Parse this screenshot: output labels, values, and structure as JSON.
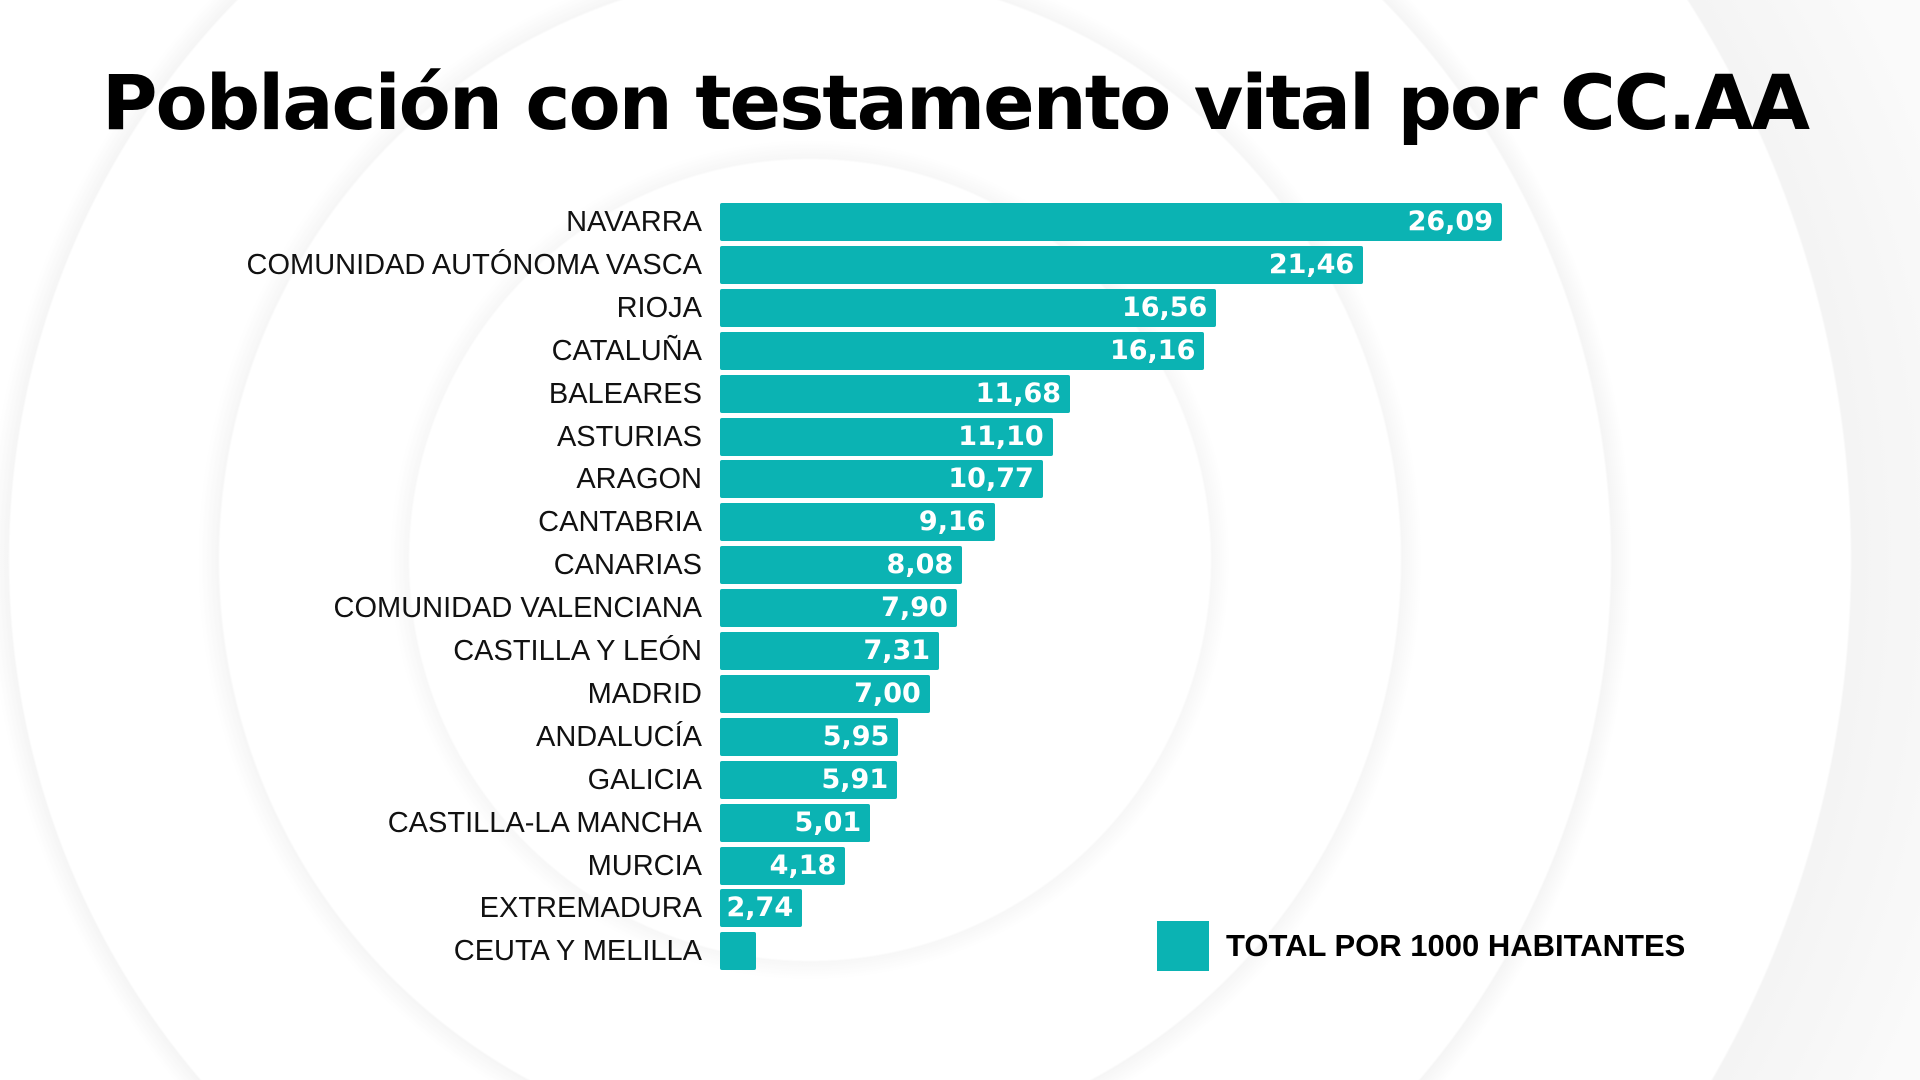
{
  "chart_data": {
    "type": "bar",
    "orientation": "horizontal",
    "title": "Población con testamento vital por CC.AA",
    "categories": [
      "NAVARRA",
      "COMUNIDAD AUTÓNOMA VASCA",
      "RIOJA",
      "CATALUÑA",
      "BALEARES",
      "ASTURIAS",
      "ARAGON",
      "CANTABRIA",
      "CANARIAS",
      "COMUNIDAD VALENCIANA",
      "CASTILLA Y LEÓN",
      "MADRID",
      "ANDALUCÍA",
      "GALICIA",
      "CASTILLA-LA MANCHA",
      "MURCIA",
      "EXTREMADURA",
      "CEUTA Y MELILLA"
    ],
    "values": [
      26.09,
      21.46,
      16.56,
      16.16,
      11.68,
      11.1,
      10.77,
      9.16,
      8.08,
      7.9,
      7.31,
      7.0,
      5.95,
      5.91,
      5.01,
      4.18,
      2.74,
      1.2
    ],
    "value_labels": [
      "26,09",
      "21,46",
      "16,56",
      "16,16",
      "11,68",
      "11,10",
      "10,77",
      "9,16",
      "8,08",
      "7,90",
      "7,31",
      "7,00",
      "5,95",
      "5,91",
      "5,01",
      "4,18",
      "2,74",
      ""
    ],
    "series": [
      {
        "name": "TOTAL POR 1000 HABITANTES"
      }
    ],
    "legend_position": "bottom-right",
    "grid": false,
    "bar_color": "#0bb3b3",
    "xlim": [
      0,
      26.09
    ]
  }
}
